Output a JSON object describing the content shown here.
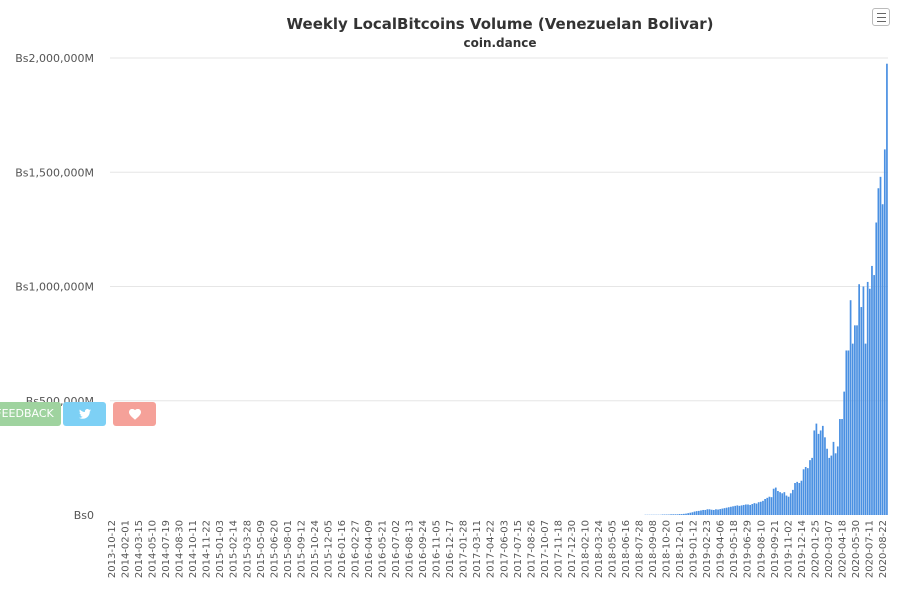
{
  "title": "Weekly LocalBitcoins Volume (Venezuelan Bolivar)",
  "subtitle": "coin.dance",
  "buttons": {
    "feedback_label": "FEEDBACK",
    "twitter_icon": "twitter-bird-icon",
    "heart_icon": "heart-icon",
    "menu_icon": "hamburger-menu-icon"
  },
  "colors": {
    "bar": "#4a90e2",
    "feedback": "#9fd39f",
    "twitter": "#7dd0f5",
    "heart": "#f5a199"
  },
  "chart_data": {
    "type": "bar",
    "title": "Weekly LocalBitcoins Volume (Venezuelan Bolivar)",
    "subtitle": "coin.dance",
    "xlabel": "",
    "ylabel": "",
    "ylim": [
      0,
      2000
    ],
    "y_unit": "millions of Bs",
    "y_ticks": [
      0,
      500,
      1000,
      1500,
      2000
    ],
    "y_tick_labels": [
      "Bs0",
      "Bs500,000M",
      "Bs1,000,000M",
      "Bs1,500,000M",
      "Bs2,000,000M"
    ],
    "grid": true,
    "x_tick_labels": [
      "2013-10-12",
      "2014-02-01",
      "2014-03-15",
      "2014-05-10",
      "2014-07-19",
      "2014-08-30",
      "2014-10-11",
      "2014-11-22",
      "2015-01-03",
      "2015-02-14",
      "2015-03-28",
      "2015-05-09",
      "2015-06-20",
      "2015-08-01",
      "2015-09-12",
      "2015-10-24",
      "2015-12-05",
      "2016-01-16",
      "2016-02-27",
      "2016-04-09",
      "2016-05-21",
      "2016-07-02",
      "2016-08-13",
      "2016-09-24",
      "2016-11-05",
      "2016-12-17",
      "2017-01-28",
      "2017-03-11",
      "2017-04-22",
      "2017-06-03",
      "2017-07-15",
      "2017-08-26",
      "2017-10-07",
      "2017-11-18",
      "2017-12-30",
      "2018-02-10",
      "2018-03-24",
      "2018-05-05",
      "2018-06-16",
      "2018-07-28",
      "2018-09-08",
      "2018-10-20",
      "2018-12-01",
      "2019-01-12",
      "2019-02-23",
      "2019-04-06",
      "2019-05-18",
      "2019-06-29",
      "2019-08-10",
      "2019-09-21",
      "2019-11-02",
      "2019-12-14",
      "2020-01-25",
      "2020-03-07",
      "2020-04-18",
      "2020-05-30",
      "2020-07-11",
      "2020-08-22"
    ],
    "weekly_start": "2013-10-12",
    "week_count": 362,
    "values": [
      0,
      0,
      0,
      0,
      0,
      0,
      0,
      0,
      0,
      0,
      0,
      0,
      0,
      0,
      0,
      0,
      0,
      0,
      0,
      0,
      0,
      0,
      0,
      0,
      0,
      0,
      0,
      0,
      0,
      0,
      0,
      0,
      0,
      0,
      0,
      0,
      0,
      0,
      0,
      0,
      0,
      0,
      0,
      0,
      0,
      0,
      0,
      0,
      0,
      0,
      0,
      0,
      0,
      0,
      0,
      0,
      0,
      0,
      0,
      0,
      0,
      0,
      0,
      0,
      0,
      0,
      0,
      0,
      0,
      0,
      0,
      0,
      0,
      0,
      0,
      0,
      0,
      0,
      0,
      0,
      0,
      0,
      0,
      0,
      0,
      0,
      0,
      0,
      0,
      0,
      0,
      0,
      0,
      0,
      0,
      0,
      0,
      0,
      0,
      0,
      0,
      0,
      0,
      0,
      0,
      0,
      0,
      0,
      0,
      0,
      0,
      0,
      0,
      0,
      0,
      0,
      0,
      0,
      0,
      0,
      0,
      0,
      0,
      0,
      0,
      0,
      0,
      0,
      0,
      0,
      0,
      0,
      0,
      0,
      0,
      0,
      0,
      0,
      0,
      0,
      0,
      0,
      0,
      0,
      0,
      0,
      0,
      0,
      0,
      0,
      0,
      0,
      0,
      0,
      0,
      0,
      0,
      0,
      0,
      0,
      0,
      0,
      0,
      0,
      0,
      0,
      0,
      0,
      0,
      0,
      0,
      0,
      0,
      0,
      0,
      0,
      0,
      0,
      0,
      0,
      0,
      0,
      0,
      0,
      0,
      0,
      0,
      0,
      0,
      0,
      0,
      0,
      0,
      0,
      0,
      0,
      0,
      0,
      0,
      0,
      0,
      0,
      0,
      0,
      0,
      0,
      0,
      0,
      0,
      0,
      0,
      0,
      0,
      0,
      0,
      0,
      0,
      0,
      0,
      0,
      0,
      0,
      0,
      0,
      0,
      0,
      0,
      0,
      0,
      0,
      0,
      0,
      0,
      0,
      0,
      0,
      0,
      0,
      0,
      0,
      0,
      0,
      0,
      0,
      0,
      0,
      0,
      0,
      0,
      0,
      1,
      1,
      1,
      1,
      1,
      1,
      1,
      1,
      2,
      2,
      2,
      2,
      3,
      3,
      3,
      3,
      4,
      4,
      5,
      6,
      8,
      10,
      12,
      15,
      17,
      18,
      20,
      22,
      22,
      25,
      25,
      23,
      22,
      25,
      24,
      26,
      28,
      30,
      32,
      34,
      36,
      38,
      40,
      42,
      40,
      42,
      44,
      46,
      46,
      44,
      48,
      52,
      50,
      56,
      58,
      62,
      70,
      75,
      80,
      78,
      115,
      120,
      105,
      100,
      95,
      100,
      85,
      80,
      95,
      110,
      140,
      145,
      140,
      150,
      200,
      210,
      205,
      240,
      250,
      370,
      400,
      355,
      370,
      390,
      340,
      290,
      250,
      260,
      320,
      270,
      300,
      420,
      420,
      540,
      720,
      720,
      940,
      750,
      830,
      830,
      1010,
      910,
      1000,
      750,
      1020,
      990,
      1090,
      1050,
      1280,
      1430,
      1480,
      1360,
      1600,
      1975
    ]
  }
}
